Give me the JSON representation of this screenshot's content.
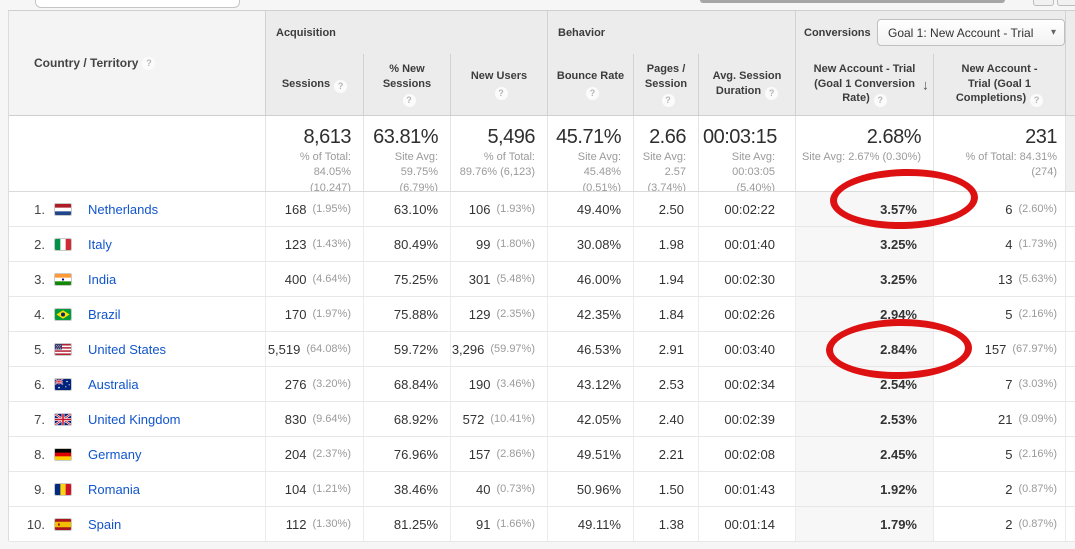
{
  "colors": {
    "link_blue": "#1155cc",
    "annotation_red": "#dd1111",
    "sorted_column_bg": "#f7f7f7",
    "header_bg": "#ececec"
  },
  "header": {
    "dimension": {
      "label": "Country / Territory"
    },
    "groups": [
      {
        "id": "acquisition",
        "label": "Acquisition"
      },
      {
        "id": "behavior",
        "label": "Behavior"
      },
      {
        "id": "conversions",
        "label": "Conversions",
        "goal_dropdown": {
          "value": "Goal 1: New Account - Trial"
        }
      }
    ],
    "columns": [
      {
        "id": "sessions",
        "label": "Sessions"
      },
      {
        "id": "pct_new_sessions",
        "label": "% New Sessions"
      },
      {
        "id": "new_users",
        "label": "New Users"
      },
      {
        "id": "bounce_rate",
        "label": "Bounce Rate"
      },
      {
        "id": "pages_session",
        "label": "Pages / Session"
      },
      {
        "id": "avg_session_duration",
        "label": "Avg. Session Duration"
      },
      {
        "id": "goal_conversion_rate",
        "label": "New Account - Trial (Goal 1 Conversion Rate)",
        "sorted": "desc"
      },
      {
        "id": "goal_completions",
        "label": "New Account - Trial (Goal 1 Completions)"
      }
    ]
  },
  "summary": [
    {
      "value": "8,613",
      "sub": [
        "% of Total:",
        "84.05%",
        "(10,247)"
      ]
    },
    {
      "value": "63.81%",
      "sub": [
        "Site Avg:",
        "59.75%",
        "(6.79%)"
      ]
    },
    {
      "value": "5,496",
      "sub": [
        "% of Total:",
        "89.76% (6,123)"
      ]
    },
    {
      "value": "45.71%",
      "sub": [
        "Site Avg:",
        "45.48%",
        "(0.51%)"
      ]
    },
    {
      "value": "2.66",
      "sub": [
        "Site Avg:",
        "2.57",
        "(3.74%)"
      ]
    },
    {
      "value": "00:03:15",
      "sub": [
        "Site Avg:",
        "00:03:05",
        "(5.40%)"
      ]
    },
    {
      "value": "2.68%",
      "sub": [
        "Site Avg: 2.67% (0.30%)"
      ]
    },
    {
      "value": "231",
      "sub": [
        "% of Total: 84.31%",
        "(274)"
      ]
    }
  ],
  "rows": [
    {
      "rank": "1.",
      "country": "Netherlands",
      "flag": "nl",
      "sessions": "168",
      "sessions_pct": "(1.95%)",
      "new_sessions": "63.10%",
      "new_users": "106",
      "new_users_pct": "(1.93%)",
      "bounce": "49.40%",
      "pages": "2.50",
      "duration": "00:02:22",
      "conv_rate": "3.57%",
      "completions": "6",
      "completions_pct": "(2.60%)",
      "circled": true
    },
    {
      "rank": "2.",
      "country": "Italy",
      "flag": "it",
      "sessions": "123",
      "sessions_pct": "(1.43%)",
      "new_sessions": "80.49%",
      "new_users": "99",
      "new_users_pct": "(1.80%)",
      "bounce": "30.08%",
      "pages": "1.98",
      "duration": "00:01:40",
      "conv_rate": "3.25%",
      "completions": "4",
      "completions_pct": "(1.73%)",
      "circled": false
    },
    {
      "rank": "3.",
      "country": "India",
      "flag": "in",
      "sessions": "400",
      "sessions_pct": "(4.64%)",
      "new_sessions": "75.25%",
      "new_users": "301",
      "new_users_pct": "(5.48%)",
      "bounce": "46.00%",
      "pages": "1.94",
      "duration": "00:02:30",
      "conv_rate": "3.25%",
      "completions": "13",
      "completions_pct": "(5.63%)",
      "circled": false
    },
    {
      "rank": "4.",
      "country": "Brazil",
      "flag": "br",
      "sessions": "170",
      "sessions_pct": "(1.97%)",
      "new_sessions": "75.88%",
      "new_users": "129",
      "new_users_pct": "(2.35%)",
      "bounce": "42.35%",
      "pages": "1.84",
      "duration": "00:02:26",
      "conv_rate": "2.94%",
      "completions": "5",
      "completions_pct": "(2.16%)",
      "circled": false
    },
    {
      "rank": "5.",
      "country": "United States",
      "flag": "us",
      "sessions": "5,519",
      "sessions_pct": "(64.08%)",
      "new_sessions": "59.72%",
      "new_users": "3,296",
      "new_users_pct": "(59.97%)",
      "bounce": "46.53%",
      "pages": "2.91",
      "duration": "00:03:40",
      "conv_rate": "2.84%",
      "completions": "157",
      "completions_pct": "(67.97%)",
      "circled": true
    },
    {
      "rank": "6.",
      "country": "Australia",
      "flag": "au",
      "sessions": "276",
      "sessions_pct": "(3.20%)",
      "new_sessions": "68.84%",
      "new_users": "190",
      "new_users_pct": "(3.46%)",
      "bounce": "43.12%",
      "pages": "2.53",
      "duration": "00:02:34",
      "conv_rate": "2.54%",
      "completions": "7",
      "completions_pct": "(3.03%)",
      "circled": false
    },
    {
      "rank": "7.",
      "country": "United Kingdom",
      "flag": "gb",
      "sessions": "830",
      "sessions_pct": "(9.64%)",
      "new_sessions": "68.92%",
      "new_users": "572",
      "new_users_pct": "(10.41%)",
      "bounce": "42.05%",
      "pages": "2.40",
      "duration": "00:02:39",
      "conv_rate": "2.53%",
      "completions": "21",
      "completions_pct": "(9.09%)",
      "circled": false
    },
    {
      "rank": "8.",
      "country": "Germany",
      "flag": "de",
      "sessions": "204",
      "sessions_pct": "(2.37%)",
      "new_sessions": "76.96%",
      "new_users": "157",
      "new_users_pct": "(2.86%)",
      "bounce": "49.51%",
      "pages": "2.21",
      "duration": "00:02:08",
      "conv_rate": "2.45%",
      "completions": "5",
      "completions_pct": "(2.16%)",
      "circled": false
    },
    {
      "rank": "9.",
      "country": "Romania",
      "flag": "ro",
      "sessions": "104",
      "sessions_pct": "(1.21%)",
      "new_sessions": "38.46%",
      "new_users": "40",
      "new_users_pct": "(0.73%)",
      "bounce": "50.96%",
      "pages": "1.50",
      "duration": "00:01:43",
      "conv_rate": "1.92%",
      "completions": "2",
      "completions_pct": "(0.87%)",
      "circled": false
    },
    {
      "rank": "10.",
      "country": "Spain",
      "flag": "es",
      "sessions": "112",
      "sessions_pct": "(1.30%)",
      "new_sessions": "81.25%",
      "new_users": "91",
      "new_users_pct": "(1.66%)",
      "bounce": "49.11%",
      "pages": "1.38",
      "duration": "00:01:14",
      "conv_rate": "1.79%",
      "completions": "2",
      "completions_pct": "(0.87%)",
      "circled": false
    }
  ],
  "annotations": {
    "circled_values": [
      "3.57%",
      "2.84%"
    ],
    "description": "hand-drawn red ellipses over goal conversion rate of Netherlands and United States"
  }
}
